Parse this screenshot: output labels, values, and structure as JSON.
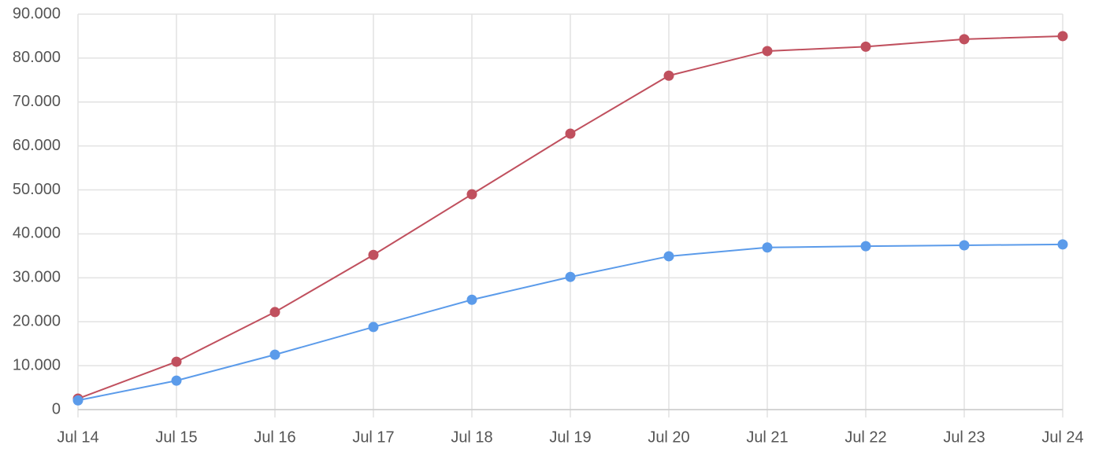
{
  "chart_data": {
    "type": "line",
    "categories": [
      "Jul 14",
      "Jul 15",
      "Jul 16",
      "Jul 17",
      "Jul 18",
      "Jul 19",
      "Jul 20",
      "Jul 21",
      "Jul 22",
      "Jul 23",
      "Jul 24"
    ],
    "series": [
      {
        "color": "#c0505e",
        "values": [
          2500,
          10900,
          22200,
          35200,
          49000,
          62800,
          76000,
          81600,
          82600,
          84300,
          85000
        ]
      },
      {
        "color": "#5b9bea",
        "values": [
          2100,
          6600,
          12500,
          18800,
          25000,
          30200,
          34900,
          36900,
          37200,
          37400,
          37600
        ]
      }
    ],
    "ylim": [
      0,
      90000
    ],
    "yticks": [
      0,
      {
        "value": 10000,
        "label": "10.000"
      },
      {
        "value": 20000,
        "label": "20.000"
      },
      {
        "value": 30000,
        "label": "30.000"
      },
      {
        "value": 40000,
        "label": "40.000"
      },
      {
        "value": 50000,
        "label": "50.000"
      },
      {
        "value": 60000,
        "label": "60.000"
      },
      {
        "value": 70000,
        "label": "70.000"
      },
      {
        "value": 80000,
        "label": "80.000"
      },
      {
        "value": 90000,
        "label": "90.000"
      }
    ],
    "grid": true
  }
}
